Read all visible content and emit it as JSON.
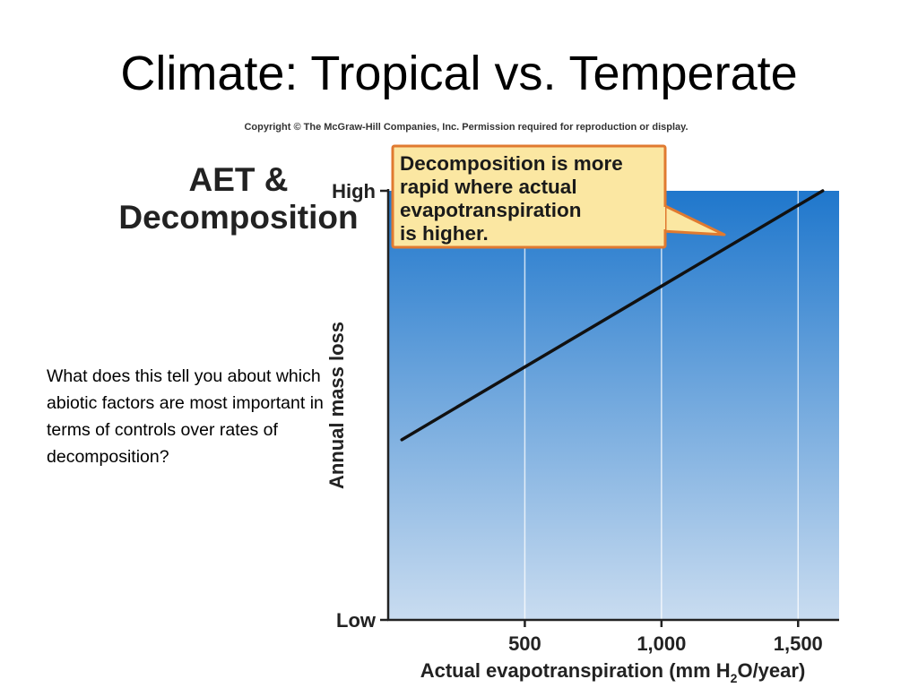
{
  "slide": {
    "title": "Climate:  Tropical vs. Temperate",
    "copyright": "Copyright © The McGraw-Hill Companies, Inc. Permission required for reproduction or display.",
    "heading_line1": "AET &",
    "heading_line2": "Decomposition",
    "question": "What does this tell you about which abiotic factors are most important in terms of controls over rates of decomposition?"
  },
  "chart_data": {
    "type": "line",
    "title": "",
    "xlabel": "Actual evapotranspiration (mm H2O/year)",
    "xlabel_parts": {
      "before": "Actual evapotranspiration (mm H",
      "subscript": "2",
      "after": "O/year)"
    },
    "ylabel": "Annual mass loss",
    "x_ticks": [
      500,
      1000,
      1500
    ],
    "x_tick_labels": [
      "500",
      "1,000",
      "1,500"
    ],
    "y_tick_labels": {
      "low": "Low",
      "high": "High"
    },
    "xlim": [
      0,
      1650
    ],
    "ylim": [
      0,
      1
    ],
    "grid": "vertical",
    "series": [
      {
        "x": [
          50,
          1590
        ],
        "y": [
          0.42,
          1.0
        ]
      }
    ],
    "annotation": {
      "lines": [
        "Decomposition is more",
        "rapid where actual",
        "evapotranspiration",
        "is higher."
      ]
    },
    "colors": {
      "background_top": "#1f77cc",
      "background_bottom": "#c9dcf0",
      "line": "#111111",
      "callout_fill": "#fbe7a2",
      "callout_border": "#e07a30"
    }
  }
}
